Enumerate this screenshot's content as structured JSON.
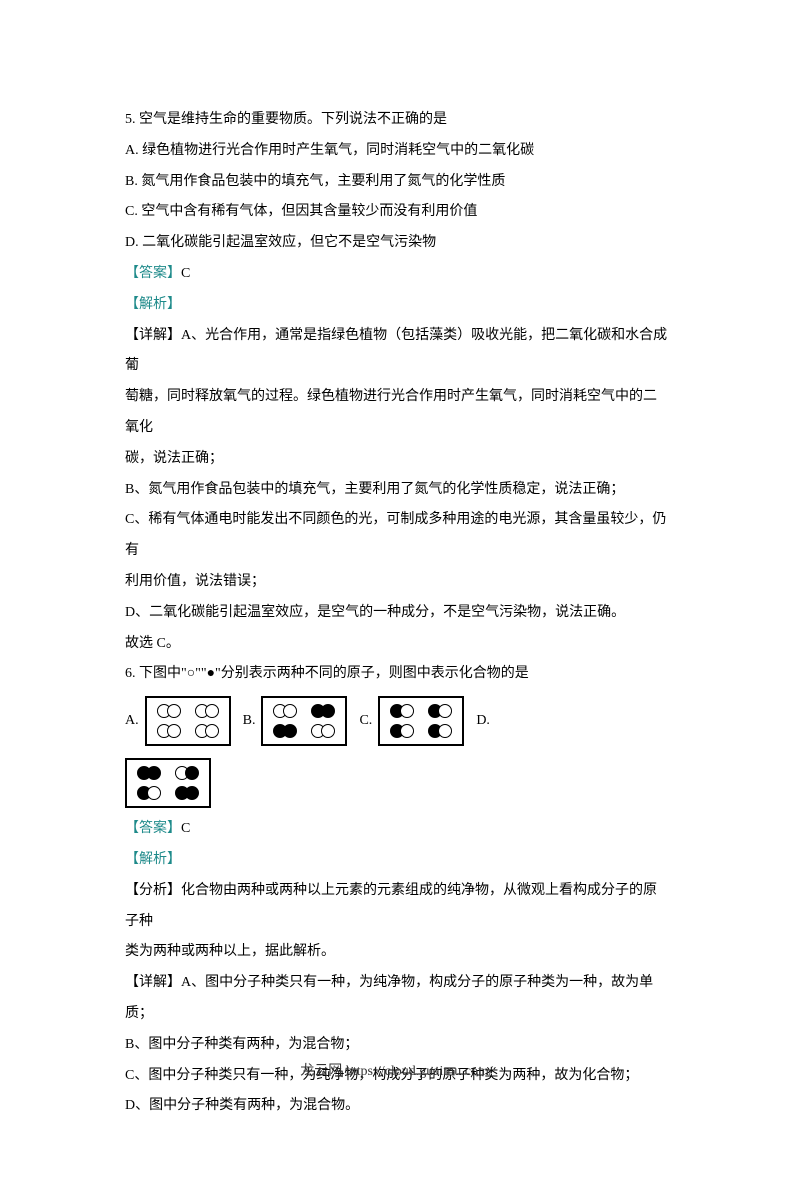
{
  "q5": {
    "stem": "5. 空气是维持生命的重要物质。下列说法不正确的是",
    "options": {
      "A": "A. 绿色植物进行光合作用时产生氧气，同时消耗空气中的二氧化碳",
      "B": "B. 氮气用作食品包装中的填充气，主要利用了氮气的化学性质",
      "C": "C. 空气中含有稀有气体，但因其含量较少而没有利用价值",
      "D": "D. 二氧化碳能引起温室效应，但它不是空气污染物"
    },
    "answer_label": "【答案】",
    "answer_value": "C",
    "analysis_label": "【解析】",
    "detail_lines": [
      "【详解】A、光合作用，通常是指绿色植物（包括藻类）吸收光能，把二氧化碳和水合成葡",
      "萄糖，同时释放氧气的过程。绿色植物进行光合作用时产生氧气，同时消耗空气中的二氧化",
      "碳，说法正确；",
      "B、氮气用作食品包装中的填充气，主要利用了氮气的化学性质稳定，说法正确；",
      "C、稀有气体通电时能发出不同颜色的光，可制成多种用途的电光源，其含量虽较少，仍有",
      "利用价值，说法错误；",
      "D、二氧化碳能引起温室效应，是空气的一种成分，不是空气污染物，说法正确。",
      "故选 C。"
    ]
  },
  "q6": {
    "stem": "6. 下图中\"○\"\"●\"分别表示两种不同的原子，则图中表示化合物的是",
    "opt_labels": {
      "A": "A.",
      "B": "B.",
      "C": "C.",
      "D": "D."
    },
    "diagrams": {
      "A": {
        "rows": [
          [
            [
              "open",
              "open"
            ],
            [
              "open",
              "open"
            ]
          ],
          [
            [
              "open",
              "open"
            ],
            [
              "open",
              "open"
            ]
          ]
        ]
      },
      "B": {
        "rows": [
          [
            [
              "open",
              "open"
            ],
            [
              "filled",
              "filled"
            ]
          ],
          [
            [
              "filled",
              "filled"
            ],
            [
              "open",
              "open"
            ]
          ]
        ]
      },
      "C": {
        "rows": [
          [
            [
              "filled",
              "open"
            ],
            [
              "filled",
              "open"
            ]
          ],
          [
            [
              "filled",
              "open"
            ],
            [
              "filled",
              "open"
            ]
          ]
        ]
      },
      "D": {
        "rows": [
          [
            [
              "filled",
              "filled"
            ],
            [
              "open",
              "filled"
            ]
          ],
          [
            [
              "filled",
              "open"
            ],
            [
              "filled",
              "filled"
            ]
          ]
        ]
      }
    },
    "answer_label": "【答案】",
    "answer_value": "C",
    "analysis_label": "【解析】",
    "analysis_lines": [
      "【分析】化合物由两种或两种以上元素的元素组成的纯净物，从微观上看构成分子的原子种",
      "类为两种或两种以上，据此解析。"
    ],
    "detail_lines": [
      "【详解】A、图中分子种类只有一种，为纯净物，构成分子的原子种类为一种，故为单质；",
      "B、图中分子种类有两种，为混合物；",
      "C、图中分子种类只有一种，为纯净物，构成分子的原子种类为两种，故为化合物；",
      "D、图中分子种类有两种，为混合物。"
    ]
  },
  "footer": "龙云网 https://cloud.guaimu.com/",
  "colors": {
    "accent": "#1e8a8a",
    "text": "#000000",
    "bg": "#ffffff"
  }
}
